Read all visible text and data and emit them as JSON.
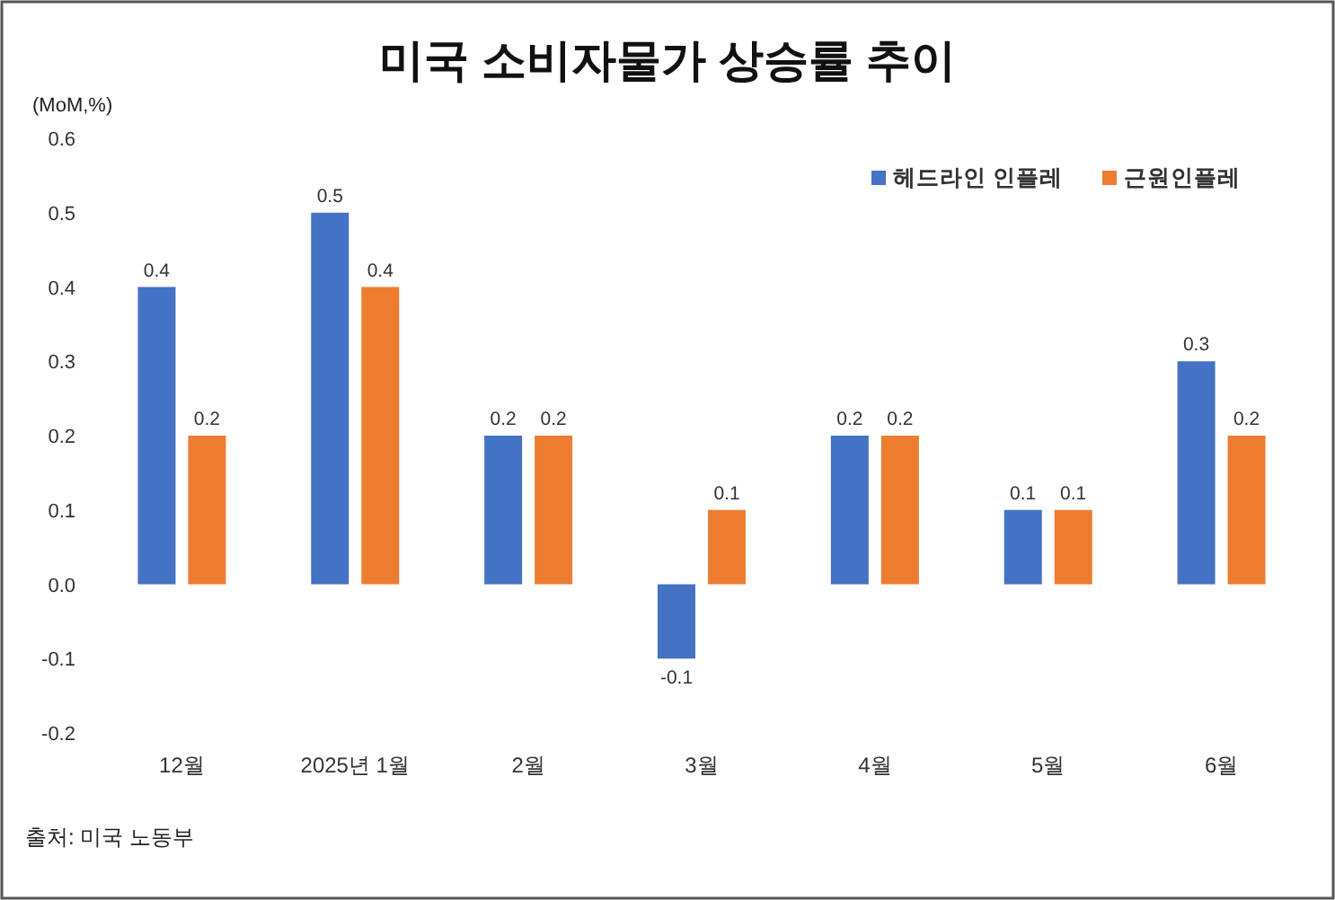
{
  "chart_data": {
    "type": "bar",
    "title": "미국 소비자물가 상승률 추이",
    "ylabel": "(MoM,%)",
    "categories": [
      "12월",
      "2025년 1월",
      "2월",
      "3월",
      "4월",
      "5월",
      "6월"
    ],
    "series": [
      {
        "name": "헤드라인 인플레",
        "color": "#4472c4",
        "values": [
          0.4,
          0.5,
          0.2,
          -0.1,
          0.2,
          0.1,
          0.3
        ]
      },
      {
        "name": "근원인플레",
        "color": "#ed7d31",
        "values": [
          0.2,
          0.4,
          0.2,
          0.1,
          0.2,
          0.1,
          0.2
        ]
      }
    ],
    "ylim": [
      -0.2,
      0.6
    ],
    "yticks": [
      -0.2,
      -0.1,
      {
        "value": 0,
        "label": "0.0"
      },
      0.1,
      0.2,
      0.3,
      0.4,
      0.5,
      0.6
    ],
    "data_labels": true,
    "legend": "top right",
    "grid": false,
    "annotations": [
      "출처: 미국 노동부"
    ]
  }
}
